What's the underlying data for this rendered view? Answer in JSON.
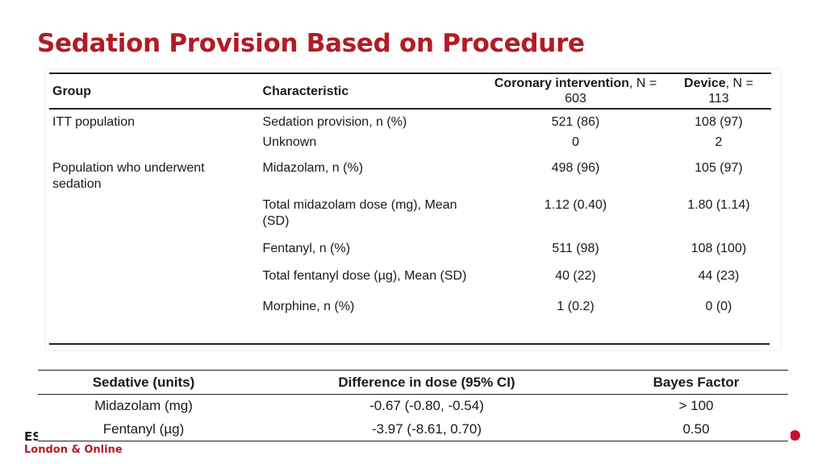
{
  "title": "Sedation Provision Based on Procedure",
  "table1": {
    "headers": {
      "group": "Group",
      "characteristic": "Characteristic",
      "coronary_bold": "Coronary intervention",
      "coronary_n": ", N =",
      "coronary_n_value": "603",
      "device_bold": "Device",
      "device_n": ", N =",
      "device_n_value": "113"
    },
    "rows": [
      {
        "group": "ITT population",
        "characteristic": "Sedation provision, n (%)",
        "coronary": "521 (86)",
        "device": "108 (97)"
      },
      {
        "group": "",
        "characteristic": "Unknown",
        "coronary": "0",
        "device": "2"
      },
      {
        "group": "Population who underwent sedation",
        "characteristic": "Midazolam, n (%)",
        "coronary": "498 (96)",
        "device": "105 (97)"
      },
      {
        "group": "",
        "characteristic": "Total midazolam dose (mg), Mean (SD)",
        "coronary": "1.12 (0.40)",
        "device": "1.80 (1.14)"
      },
      {
        "group": "",
        "characteristic": "Fentanyl, n (%)",
        "coronary": "511 (98)",
        "device": "108 (100)"
      },
      {
        "group": "",
        "characteristic": "Total fentanyl dose (µg), Mean (SD)",
        "coronary": "40 (22)",
        "device": "44 (23)"
      },
      {
        "group": "",
        "characteristic": "Morphine, n (%)",
        "coronary": "1 (0.2)",
        "device": "0 (0)"
      }
    ]
  },
  "table2": {
    "headers": [
      "Sedative (units)",
      "Difference in dose (95% CI)",
      "Bayes Factor"
    ],
    "rows": [
      [
        "Midazolam (mg)",
        "-0.67 (-0.80, -0.54)",
        "> 100"
      ],
      [
        "Fentanyl (µg)",
        "-3.97 (-8.61, 0.70)",
        "0.50"
      ]
    ]
  },
  "footer": {
    "logo_text": "ES",
    "subtitle": "London & Online"
  },
  "colors": {
    "accent": "#b01c25",
    "dot": "#c8102e"
  }
}
